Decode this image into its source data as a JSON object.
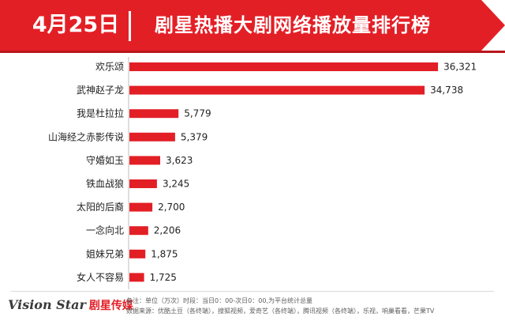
{
  "header": {
    "date": "4月25日",
    "title": "剧星热播大剧网络播放量排行榜"
  },
  "colors": {
    "accent": "#e31f26",
    "bar": "#e31f26",
    "text": "#222222"
  },
  "chart_data": {
    "type": "bar",
    "orientation": "horizontal",
    "categories": [
      "欢乐颂",
      "武神赵子龙",
      "我是杜拉拉",
      "山海经之赤影传说",
      "守婚如玉",
      "铁血战狼",
      "太阳的后裔",
      "一念向北",
      "姐妹兄弟",
      "女人不容易"
    ],
    "values": [
      36321,
      34738,
      5779,
      5379,
      3623,
      3245,
      2700,
      2206,
      1875,
      1725
    ],
    "value_labels": [
      "36,321",
      "34,738",
      "5,779",
      "5,379",
      "3,623",
      "3,245",
      "2,700",
      "2,206",
      "1,875",
      "1,725"
    ],
    "xlim": [
      0,
      39000
    ],
    "grid": false,
    "legend": "none"
  },
  "footer": {
    "logo_text": "Vision Star",
    "logo_cn": "剧星传媒",
    "note_line1": "备注：单位（万次）时段：当日0：00-次日0：00,为平台统计总量",
    "note_line2": "数据来源：优酷土豆（各终端），搜狐视频，爱奇艺（各终端），腾讯视频（各终端），乐视，响巢看看，芒果TV"
  }
}
